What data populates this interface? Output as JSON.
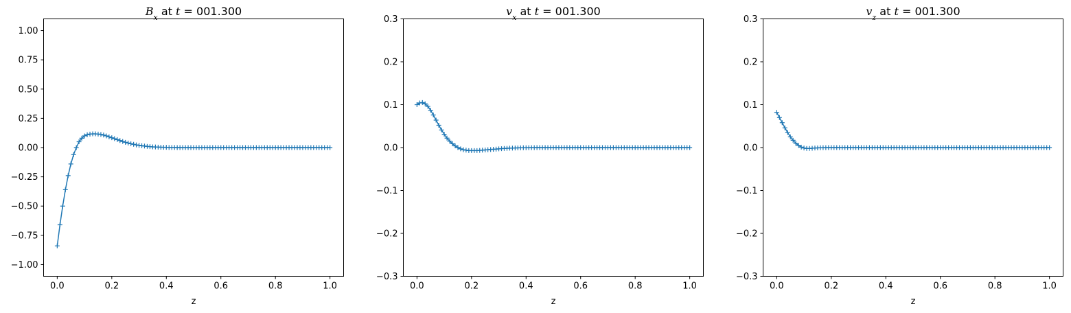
{
  "chart_data": [
    {
      "type": "scatter",
      "title": {
        "symbol": "B",
        "sub": "x",
        "suffix": " at ",
        "tsym": "t",
        "tval": " = 001.300"
      },
      "xlabel": "z",
      "ylabel": "",
      "xlim": [
        -0.05,
        1.05
      ],
      "ylim": [
        -1.1,
        1.1
      ],
      "xticks": [
        0.0,
        0.2,
        0.4,
        0.6,
        0.8,
        1.0
      ],
      "xtick_labels": [
        "0.0",
        "0.2",
        "0.4",
        "0.6",
        "0.8",
        "1.0"
      ],
      "yticks": [
        -1.0,
        -0.75,
        -0.5,
        -0.25,
        0.0,
        0.25,
        0.5,
        0.75,
        1.0
      ],
      "ytick_labels": [
        "−1.00",
        "−0.75",
        "−0.50",
        "−0.25",
        "0.00",
        "0.25",
        "0.50",
        "0.75",
        "1.00"
      ],
      "grid": false,
      "marker": "+",
      "color": "#1f77b4",
      "series": [
        {
          "x": [
            0.0,
            0.01,
            0.02,
            0.03,
            0.04,
            0.05,
            0.06,
            0.07,
            0.08,
            0.09,
            0.1,
            0.11,
            0.12,
            0.13,
            0.14,
            0.15,
            0.16,
            0.17,
            0.18,
            0.19,
            0.2,
            0.21,
            0.22,
            0.23,
            0.24,
            0.25,
            0.26,
            0.27,
            0.28,
            0.29,
            0.3,
            0.31,
            0.32,
            0.33,
            0.34,
            0.35,
            0.36,
            0.37,
            0.38,
            0.39,
            0.4,
            0.41,
            0.42,
            0.43,
            0.44,
            0.45,
            0.46,
            0.47,
            0.48,
            0.49,
            0.5,
            0.51,
            0.52,
            0.53,
            0.54,
            0.55,
            0.56,
            0.57,
            0.58,
            0.59,
            0.6,
            0.61,
            0.62,
            0.63,
            0.64,
            0.65,
            0.66,
            0.67,
            0.68,
            0.69,
            0.7,
            0.71,
            0.72,
            0.73,
            0.74,
            0.75,
            0.76,
            0.77,
            0.78,
            0.79,
            0.8,
            0.81,
            0.82,
            0.83,
            0.84,
            0.85,
            0.86,
            0.87,
            0.88,
            0.89,
            0.9,
            0.91,
            0.92,
            0.93,
            0.94,
            0.95,
            0.96,
            0.97,
            0.98,
            0.99,
            1.0
          ],
          "y": [
            -0.84,
            -0.66,
            -0.5,
            -0.36,
            -0.24,
            -0.14,
            -0.06,
            0.0,
            0.05,
            0.08,
            0.1,
            0.11,
            0.115,
            0.117,
            0.117,
            0.115,
            0.112,
            0.107,
            0.1,
            0.092,
            0.084,
            0.076,
            0.068,
            0.06,
            0.052,
            0.045,
            0.039,
            0.033,
            0.028,
            0.023,
            0.019,
            0.016,
            0.013,
            0.01,
            0.008,
            0.006,
            0.005,
            0.004,
            0.003,
            0.002,
            0.002,
            0.001,
            0.001,
            0.001,
            0.0,
            0.0,
            0.0,
            0.0,
            0.0,
            0.0,
            0.0,
            0.0,
            0.0,
            0.0,
            0.0,
            0.0,
            0.0,
            0.0,
            0.0,
            0.0,
            0.0,
            0.0,
            0.0,
            0.0,
            0.0,
            0.0,
            0.0,
            0.0,
            0.0,
            0.0,
            0.0,
            0.0,
            0.0,
            0.0,
            0.0,
            0.0,
            0.0,
            0.0,
            0.0,
            0.0,
            0.0,
            0.0,
            0.0,
            0.0,
            0.0,
            0.0,
            0.0,
            0.0,
            0.0,
            0.0,
            0.0,
            0.0,
            0.0,
            0.0,
            0.0,
            0.0,
            0.0,
            0.0,
            0.0,
            0.0,
            0.0
          ]
        }
      ]
    },
    {
      "type": "scatter",
      "title": {
        "symbol": "v",
        "sub": "x",
        "suffix": " at ",
        "tsym": "t",
        "tval": " = 001.300"
      },
      "xlabel": "z",
      "ylabel": "",
      "xlim": [
        -0.05,
        1.05
      ],
      "ylim": [
        -0.3,
        0.3
      ],
      "xticks": [
        0.0,
        0.2,
        0.4,
        0.6,
        0.8,
        1.0
      ],
      "xtick_labels": [
        "0.0",
        "0.2",
        "0.4",
        "0.6",
        "0.8",
        "1.0"
      ],
      "yticks": [
        -0.3,
        -0.2,
        -0.1,
        0.0,
        0.1,
        0.2,
        0.3
      ],
      "ytick_labels": [
        "−0.3",
        "−0.2",
        "−0.1",
        "0.0",
        "0.1",
        "0.2",
        "0.3"
      ],
      "grid": false,
      "marker": "+",
      "color": "#1f77b4",
      "series": [
        {
          "x": [
            0.0,
            0.01,
            0.02,
            0.03,
            0.04,
            0.05,
            0.06,
            0.07,
            0.08,
            0.09,
            0.1,
            0.11,
            0.12,
            0.13,
            0.14,
            0.15,
            0.16,
            0.17,
            0.18,
            0.19,
            0.2,
            0.21,
            0.22,
            0.23,
            0.24,
            0.25,
            0.26,
            0.27,
            0.28,
            0.29,
            0.3,
            0.31,
            0.32,
            0.33,
            0.34,
            0.35,
            0.36,
            0.37,
            0.38,
            0.39,
            0.4,
            0.41,
            0.42,
            0.43,
            0.44,
            0.45,
            0.46,
            0.47,
            0.48,
            0.49,
            0.5,
            0.51,
            0.52,
            0.53,
            0.54,
            0.55,
            0.56,
            0.57,
            0.58,
            0.59,
            0.6,
            0.61,
            0.62,
            0.63,
            0.64,
            0.65,
            0.66,
            0.67,
            0.68,
            0.69,
            0.7,
            0.71,
            0.72,
            0.73,
            0.74,
            0.75,
            0.76,
            0.77,
            0.78,
            0.79,
            0.8,
            0.81,
            0.82,
            0.83,
            0.84,
            0.85,
            0.86,
            0.87,
            0.88,
            0.89,
            0.9,
            0.91,
            0.92,
            0.93,
            0.94,
            0.95,
            0.96,
            0.97,
            0.98,
            0.99,
            1.0
          ],
          "y": [
            0.1,
            0.104,
            0.105,
            0.102,
            0.096,
            0.087,
            0.076,
            0.064,
            0.052,
            0.041,
            0.031,
            0.022,
            0.015,
            0.009,
            0.004,
            0.0,
            -0.003,
            -0.005,
            -0.006,
            -0.007,
            -0.007,
            -0.007,
            -0.007,
            -0.0065,
            -0.006,
            -0.0055,
            -0.005,
            -0.0045,
            -0.004,
            -0.0035,
            -0.003,
            -0.0025,
            -0.002,
            -0.0017,
            -0.0014,
            -0.0011,
            -0.0009,
            -0.0007,
            -0.0005,
            -0.0004,
            -0.0003,
            -0.0002,
            -0.0001,
            -0.0001,
            0.0,
            0.0,
            0.0,
            0.0,
            0.0,
            0.0,
            0.0,
            0.0,
            0.0,
            0.0,
            0.0,
            0.0,
            0.0,
            0.0,
            0.0,
            0.0,
            0.0,
            0.0,
            0.0,
            0.0,
            0.0,
            0.0,
            0.0,
            0.0,
            0.0,
            0.0,
            0.0,
            0.0,
            0.0,
            0.0,
            0.0,
            0.0,
            0.0,
            0.0,
            0.0,
            0.0,
            0.0,
            0.0,
            0.0,
            0.0,
            0.0,
            0.0,
            0.0,
            0.0,
            0.0,
            0.0,
            0.0,
            0.0,
            0.0,
            0.0,
            0.0,
            0.0,
            0.0,
            0.0,
            0.0,
            0.0,
            0.0
          ]
        }
      ]
    },
    {
      "type": "scatter",
      "title": {
        "symbol": "v",
        "sub": "z",
        "suffix": " at ",
        "tsym": "t",
        "tval": " = 001.300"
      },
      "xlabel": "z",
      "ylabel": "",
      "xlim": [
        -0.05,
        1.05
      ],
      "ylim": [
        -0.3,
        0.3
      ],
      "xticks": [
        0.0,
        0.2,
        0.4,
        0.6,
        0.8,
        1.0
      ],
      "xtick_labels": [
        "0.0",
        "0.2",
        "0.4",
        "0.6",
        "0.8",
        "1.0"
      ],
      "yticks": [
        -0.3,
        -0.2,
        -0.1,
        0.0,
        0.1,
        0.2,
        0.3
      ],
      "ytick_labels": [
        "−0.3",
        "−0.2",
        "−0.1",
        "0.0",
        "0.1",
        "0.2",
        "0.3"
      ],
      "grid": false,
      "marker": "+",
      "color": "#1f77b4",
      "series": [
        {
          "x": [
            0.0,
            0.01,
            0.02,
            0.03,
            0.04,
            0.05,
            0.06,
            0.07,
            0.08,
            0.09,
            0.1,
            0.11,
            0.12,
            0.13,
            0.14,
            0.15,
            0.16,
            0.17,
            0.18,
            0.19,
            0.2,
            0.21,
            0.22,
            0.23,
            0.24,
            0.25,
            0.26,
            0.27,
            0.28,
            0.29,
            0.3,
            0.31,
            0.32,
            0.33,
            0.34,
            0.35,
            0.36,
            0.37,
            0.38,
            0.39,
            0.4,
            0.41,
            0.42,
            0.43,
            0.44,
            0.45,
            0.46,
            0.47,
            0.48,
            0.49,
            0.5,
            0.51,
            0.52,
            0.53,
            0.54,
            0.55,
            0.56,
            0.57,
            0.58,
            0.59,
            0.6,
            0.61,
            0.62,
            0.63,
            0.64,
            0.65,
            0.66,
            0.67,
            0.68,
            0.69,
            0.7,
            0.71,
            0.72,
            0.73,
            0.74,
            0.75,
            0.76,
            0.77,
            0.78,
            0.79,
            0.8,
            0.81,
            0.82,
            0.83,
            0.84,
            0.85,
            0.86,
            0.87,
            0.88,
            0.89,
            0.9,
            0.91,
            0.92,
            0.93,
            0.94,
            0.95,
            0.96,
            0.97,
            0.98,
            0.99,
            1.0
          ],
          "y": [
            0.082,
            0.07,
            0.058,
            0.046,
            0.035,
            0.025,
            0.017,
            0.01,
            0.005,
            0.001,
            -0.001,
            -0.002,
            -0.002,
            -0.0015,
            -0.001,
            -0.0007,
            -0.0004,
            -0.0002,
            -0.0001,
            0.0,
            0.0,
            0.0,
            0.0,
            0.0,
            0.0,
            0.0,
            0.0,
            0.0,
            0.0,
            0.0,
            0.0,
            0.0,
            0.0,
            0.0,
            0.0,
            0.0,
            0.0,
            0.0,
            0.0,
            0.0,
            0.0,
            0.0,
            0.0,
            0.0,
            0.0,
            0.0,
            0.0,
            0.0,
            0.0,
            0.0,
            0.0,
            0.0,
            0.0,
            0.0,
            0.0,
            0.0,
            0.0,
            0.0,
            0.0,
            0.0,
            0.0,
            0.0,
            0.0,
            0.0,
            0.0,
            0.0,
            0.0,
            0.0,
            0.0,
            0.0,
            0.0,
            0.0,
            0.0,
            0.0,
            0.0,
            0.0,
            0.0,
            0.0,
            0.0,
            0.0,
            0.0,
            0.0,
            0.0,
            0.0,
            0.0,
            0.0,
            0.0,
            0.0,
            0.0,
            0.0,
            0.0,
            0.0,
            0.0,
            0.0,
            0.0,
            0.0,
            0.0,
            0.0,
            0.0,
            0.0,
            0.0
          ]
        }
      ]
    }
  ]
}
